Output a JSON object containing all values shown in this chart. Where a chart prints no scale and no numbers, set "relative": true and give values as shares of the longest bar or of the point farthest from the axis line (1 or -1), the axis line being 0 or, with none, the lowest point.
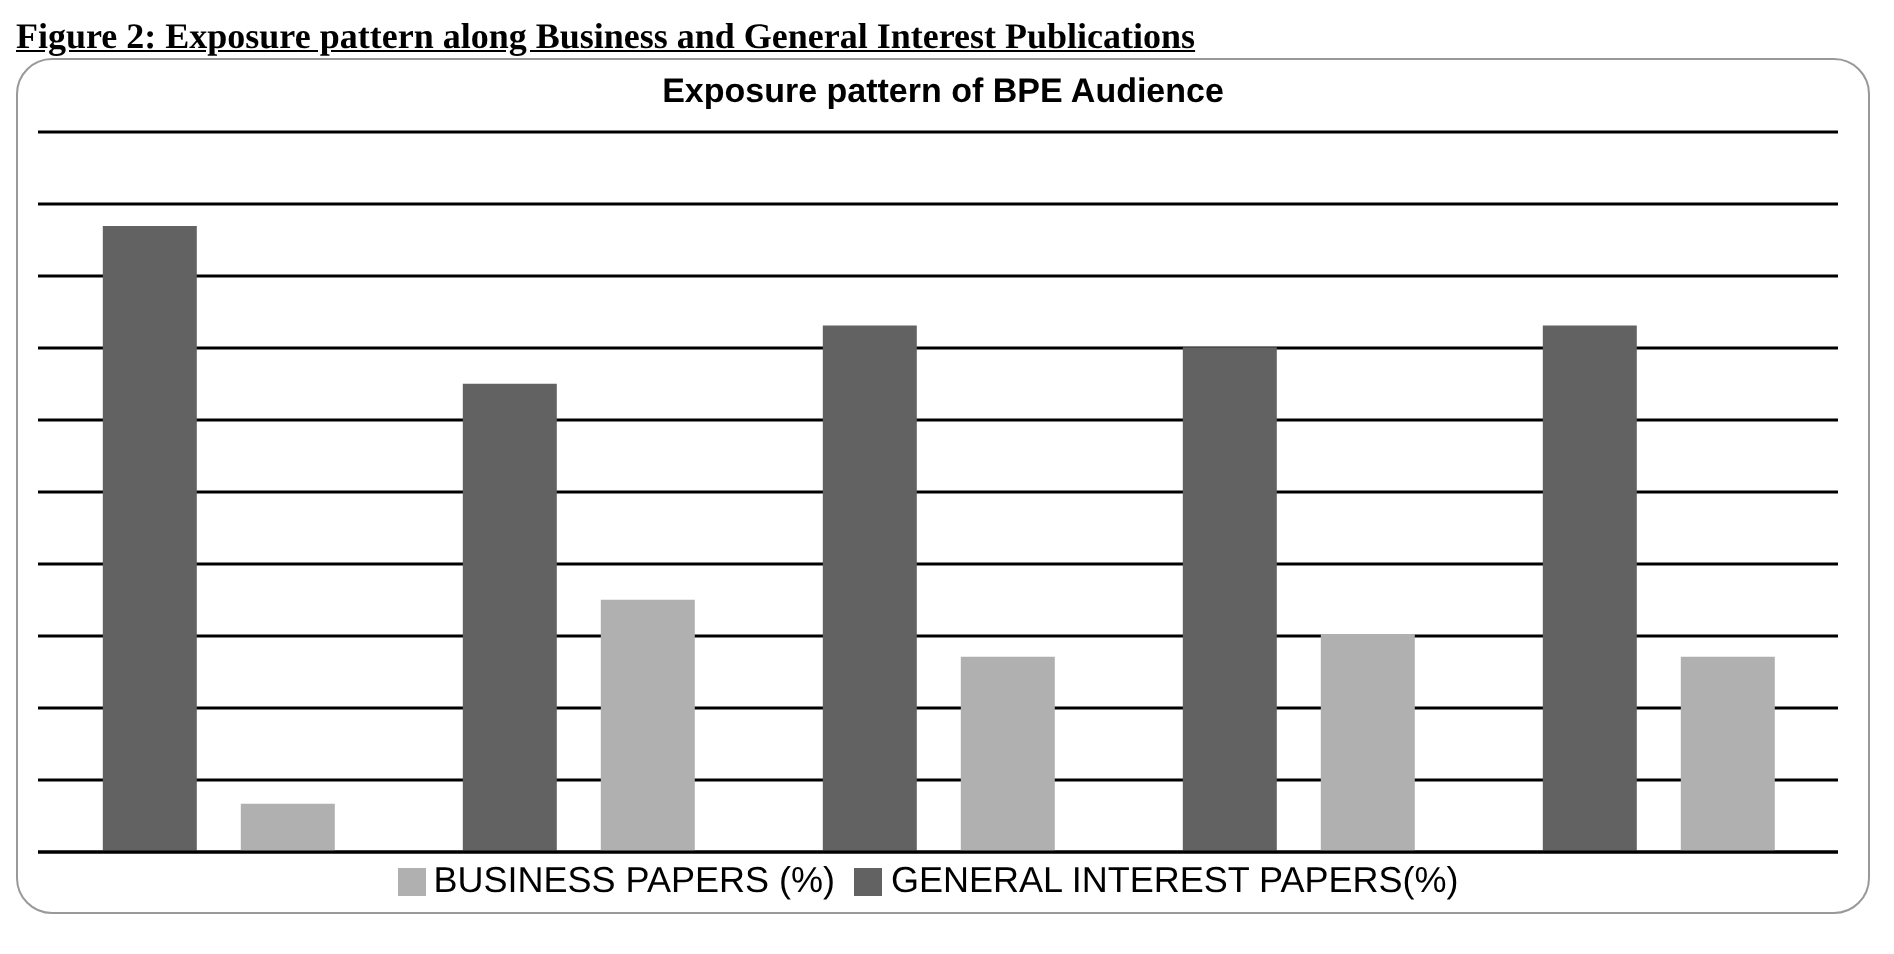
{
  "chart_data": {
    "type": "bar",
    "title": "Figure 2: Exposure pattern along Business and General Interest Publications",
    "subtitle": "Exposure pattern of BPE Audience",
    "relative": true,
    "categories": [
      null,
      null,
      null,
      null,
      null
    ],
    "series": [
      {
        "name": "GENERAL INTEREST PAPERS(%)",
        "color": "#626262",
        "values": [
          1,
          0.748,
          0.841,
          0.806,
          0.841
        ]
      },
      {
        "name": "BUSINESS PAPERS (%)",
        "color": "#b0b0b0",
        "values": [
          0.077,
          0.403,
          0.312,
          0.348,
          0.312
        ]
      }
    ],
    "grid": "y",
    "legend": "bottom"
  }
}
